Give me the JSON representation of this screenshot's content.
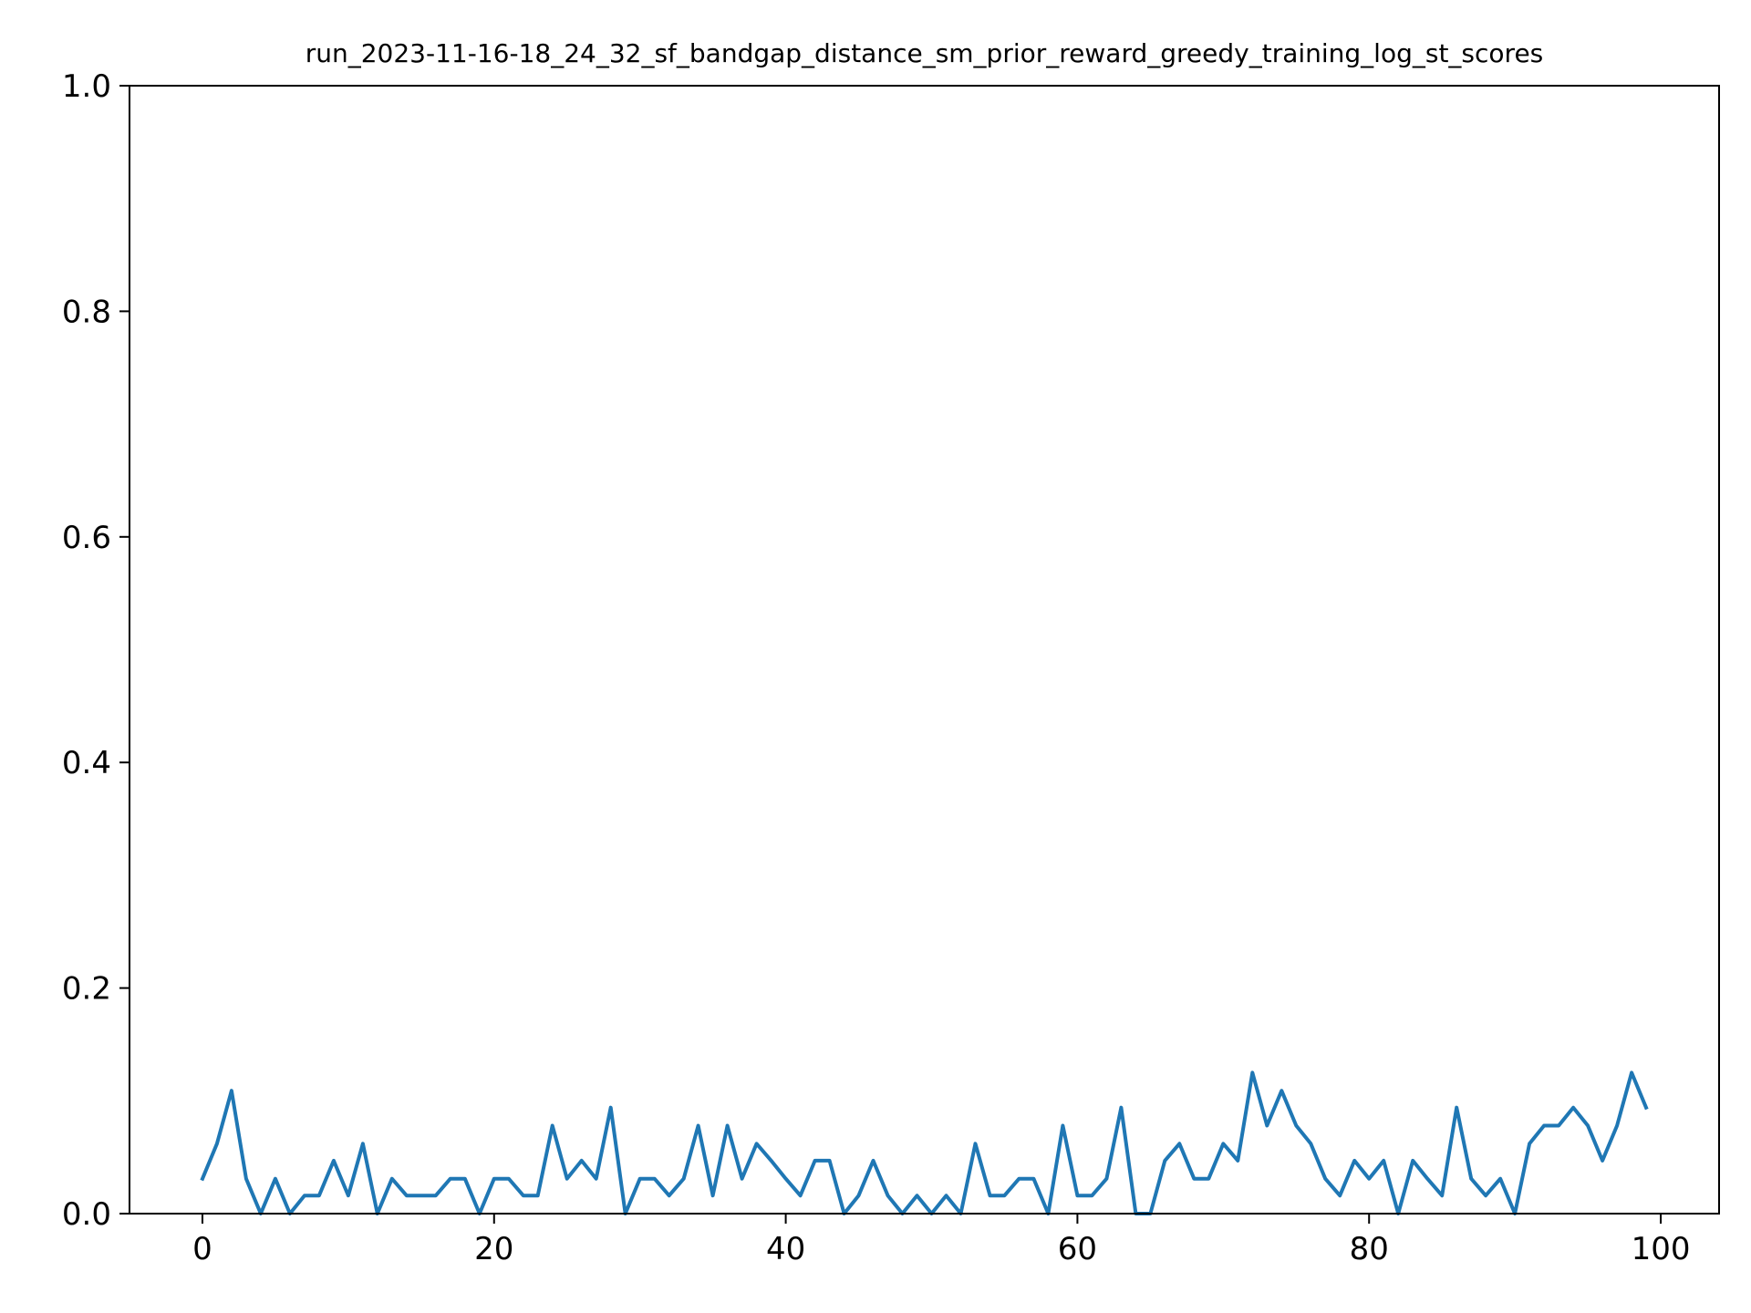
{
  "chart_data": {
    "type": "line",
    "title": "run_2023-11-16-18_24_32_sf_bandgap_distance_sm_prior_reward_greedy_training_log_st_scores",
    "xlabel": "",
    "ylabel": "",
    "xlim": [
      -5,
      104
    ],
    "ylim": [
      0.0,
      1.0
    ],
    "grid": false,
    "xticks": [
      0,
      20,
      40,
      60,
      80,
      100
    ],
    "xtick_labels": [
      "0",
      "20",
      "40",
      "60",
      "80",
      "100"
    ],
    "yticks": [
      0.0,
      0.2,
      0.4,
      0.6,
      0.8,
      1.0
    ],
    "ytick_labels": [
      "0.0",
      "0.2",
      "0.4",
      "0.6",
      "0.8",
      "1.0"
    ],
    "series": [
      {
        "color": "#1f77b4",
        "x": [
          0,
          1,
          2,
          3,
          4,
          5,
          6,
          7,
          8,
          9,
          10,
          11,
          12,
          13,
          14,
          15,
          16,
          17,
          18,
          19,
          20,
          21,
          22,
          23,
          24,
          25,
          26,
          27,
          28,
          29,
          30,
          31,
          32,
          33,
          34,
          35,
          36,
          37,
          38,
          39,
          40,
          41,
          42,
          43,
          44,
          45,
          46,
          47,
          48,
          49,
          50,
          51,
          52,
          53,
          54,
          55,
          56,
          57,
          58,
          59,
          60,
          61,
          62,
          63,
          64,
          65,
          66,
          67,
          68,
          69,
          70,
          71,
          72,
          73,
          74,
          75,
          76,
          77,
          78,
          79,
          80,
          81,
          82,
          83,
          84,
          85,
          86,
          87,
          88,
          89,
          90,
          91,
          92,
          93,
          94,
          95,
          96,
          97,
          98,
          99
        ],
        "y": [
          0.031,
          0.062,
          0.109,
          0.031,
          0.0,
          0.031,
          0.0,
          0.016,
          0.016,
          0.047,
          0.016,
          0.062,
          0.0,
          0.031,
          0.016,
          0.016,
          0.016,
          0.031,
          0.031,
          0.0,
          0.031,
          0.031,
          0.016,
          0.016,
          0.078,
          0.031,
          0.047,
          0.031,
          0.094,
          0.0,
          0.031,
          0.031,
          0.016,
          0.031,
          0.078,
          0.016,
          0.078,
          0.031,
          0.062,
          0.047,
          0.031,
          0.016,
          0.047,
          0.047,
          0.0,
          0.016,
          0.047,
          0.016,
          0.0,
          0.016,
          0.0,
          0.016,
          0.0,
          0.062,
          0.016,
          0.016,
          0.031,
          0.031,
          0.0,
          0.078,
          0.016,
          0.016,
          0.031,
          0.094,
          0.0,
          0.0,
          0.047,
          0.062,
          0.031,
          0.031,
          0.062,
          0.047,
          0.125,
          0.078,
          0.109,
          0.078,
          0.062,
          0.031,
          0.016,
          0.047,
          0.031,
          0.047,
          0.0,
          0.047,
          0.031,
          0.016,
          0.094,
          0.031,
          0.016,
          0.031,
          0.0,
          0.062,
          0.078,
          0.078,
          0.094,
          0.078,
          0.047,
          0.078,
          0.125,
          0.094
        ]
      }
    ]
  }
}
